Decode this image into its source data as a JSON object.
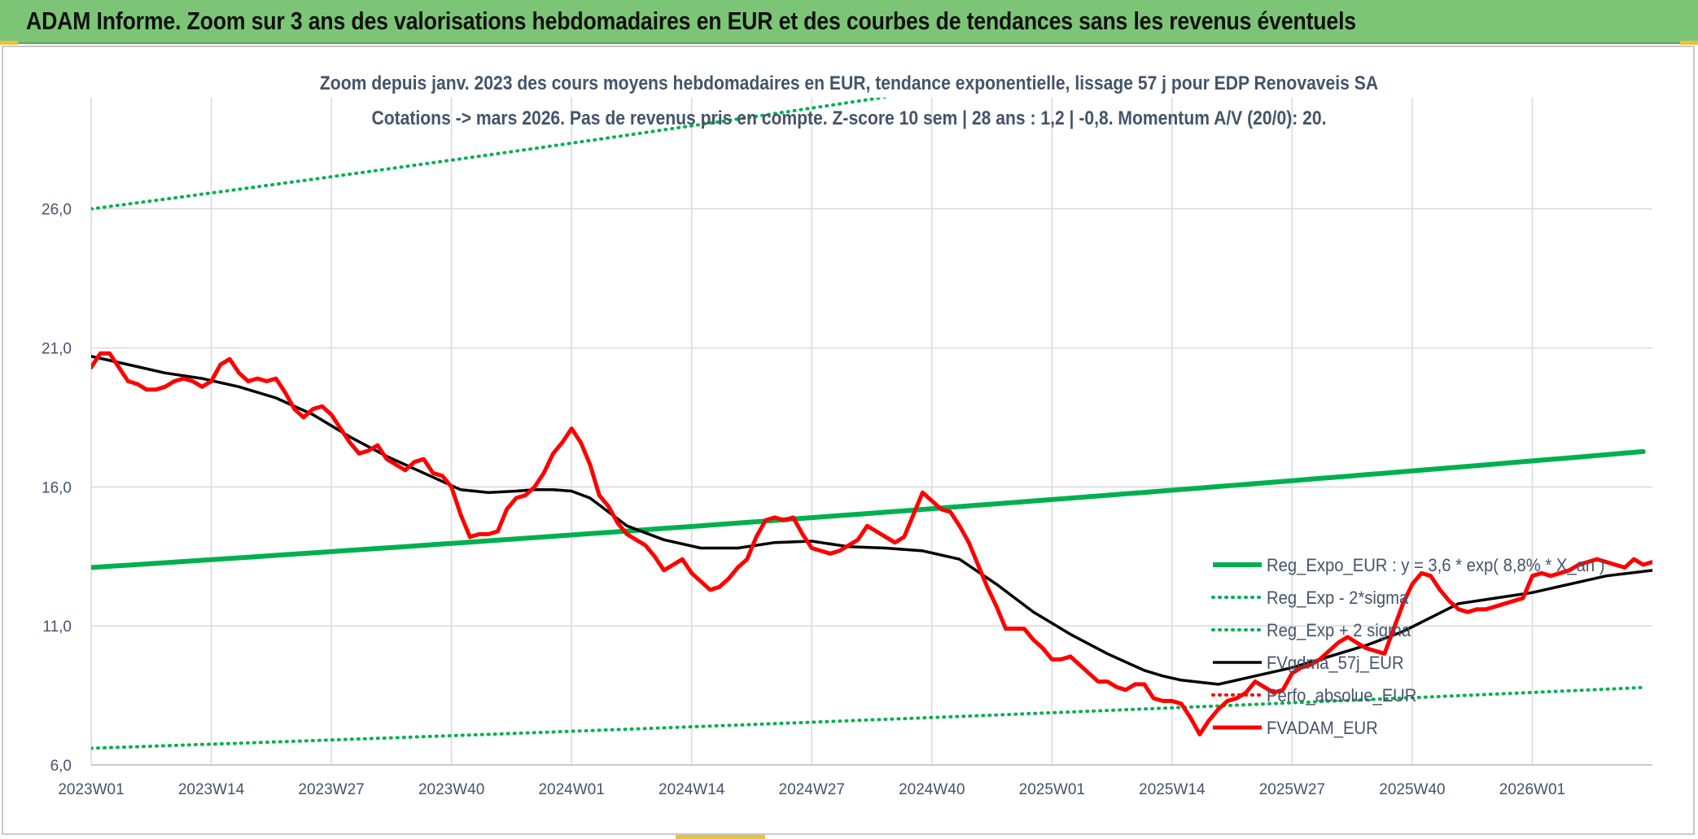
{
  "header": {
    "title": "ADAM Informe. Zoom sur 3 ans des valorisations hebdomadaires en EUR et des courbes de tendances sans les revenus éventuels"
  },
  "colors": {
    "header_bg": "#7cc576",
    "trend": "#00b050",
    "smooth": "#000000",
    "price": "#ff0000",
    "perf": "#ff0000",
    "grid": "#d9d9d9",
    "text": "#44546a"
  },
  "chart_data": {
    "type": "line",
    "title_line1": "Zoom depuis janv. 2023 des cours moyens hebdomadaires en EUR, tendance exponentielle, lissage 57 j pour EDP Renovaveis SA",
    "title_line2": "Cotations -> mars 2026. Pas de revenus pris en compte. Z-score 10 sem | 28 ans : 1,2 | -0,8. Momentum A/V (20/0): 20.",
    "ylim": [
      6.0,
      30.0
    ],
    "y_ticks": [
      "6,0",
      "11,0",
      "16,0",
      "21,0",
      "26,0"
    ],
    "y_tick_values": [
      6,
      11,
      16,
      21,
      26
    ],
    "x_tick_labels": [
      "2023W01",
      "2023W14",
      "2023W27",
      "2023W40",
      "2024W01",
      "2024W14",
      "2024W27",
      "2024W40",
      "2025W01",
      "2025W14",
      "2025W27",
      "2025W40",
      "2026W01"
    ],
    "x_tick_weeks": [
      0,
      13,
      26,
      39,
      52,
      65,
      78,
      91,
      104,
      117,
      130,
      143,
      156
    ],
    "x_max_week": 169,
    "grid": true,
    "legend_position": "right",
    "series": [
      {
        "name": "Reg_Expo_EUR : y = 3,6 * exp( 8,8% * X_an )",
        "style": "solid-thick",
        "color": "#00b050",
        "x": [
          0,
          169
        ],
        "values": [
          13.1,
          17.3
        ]
      },
      {
        "name": "Reg_Exp - 2*sigma",
        "style": "dotted",
        "color": "#00b050",
        "x": [
          0,
          169
        ],
        "values": [
          6.6,
          8.8
        ]
      },
      {
        "name": "Reg_Exp + 2 sigma",
        "style": "dotted",
        "color": "#00b050",
        "x": [
          0,
          169
        ],
        "values": [
          26.0,
          34.5
        ]
      },
      {
        "name": "FVgdma_57j_EUR",
        "style": "solid",
        "color": "#000000",
        "x": [
          0,
          4,
          8,
          12,
          16,
          20,
          24,
          28,
          32,
          36,
          40,
          43,
          46,
          48,
          50,
          52,
          54,
          58,
          62,
          66,
          70,
          74,
          78,
          82,
          86,
          90,
          94,
          98,
          102,
          106,
          110,
          114,
          116,
          118,
          122,
          126,
          130,
          134,
          138,
          142,
          145,
          148,
          152,
          156,
          160,
          164,
          169
        ],
        "values": [
          20.7,
          20.4,
          20.1,
          19.9,
          19.6,
          19.2,
          18.6,
          17.8,
          17.1,
          16.5,
          15.9,
          15.8,
          15.85,
          15.9,
          15.9,
          15.85,
          15.6,
          14.6,
          14.1,
          13.8,
          13.8,
          14.0,
          14.05,
          13.85,
          13.8,
          13.7,
          13.4,
          12.5,
          11.5,
          10.7,
          10.0,
          9.4,
          9.2,
          9.05,
          8.9,
          9.2,
          9.5,
          9.9,
          10.3,
          10.8,
          11.3,
          11.8,
          12.0,
          12.2,
          12.5,
          12.8,
          13.0
        ]
      },
      {
        "name": "Perfo_absolue_EUR",
        "style": "dotted",
        "color": "#ff0000",
        "x": [],
        "values": []
      },
      {
        "name": "FVADAM_EUR",
        "style": "solid-thick",
        "color": "#ff0000",
        "x": [
          0,
          1,
          2,
          3,
          4,
          5,
          6,
          7,
          8,
          9,
          10,
          11,
          12,
          13,
          14,
          15,
          16,
          17,
          18,
          19,
          20,
          21,
          22,
          23,
          24,
          25,
          26,
          27,
          28,
          29,
          30,
          31,
          32,
          33,
          34,
          35,
          36,
          37,
          38,
          39,
          40,
          41,
          42,
          43,
          44,
          45,
          46,
          47,
          48,
          49,
          50,
          51,
          52,
          53,
          54,
          55,
          56,
          57,
          58,
          59,
          60,
          61,
          62,
          63,
          64,
          65,
          66,
          67,
          68,
          69,
          70,
          71,
          72,
          73,
          74,
          75,
          76,
          77,
          78,
          79,
          80,
          81,
          82,
          83,
          84,
          85,
          86,
          87,
          88,
          89,
          90,
          91,
          92,
          93,
          94,
          95,
          96,
          97,
          98,
          99,
          100,
          101,
          102,
          103,
          104,
          105,
          106,
          107,
          108,
          109,
          110,
          111,
          112,
          113,
          114,
          115,
          116,
          117,
          118,
          119,
          120,
          121,
          122,
          123,
          124,
          125,
          126,
          127,
          128,
          129,
          130,
          131,
          132,
          133,
          134,
          135,
          136,
          137,
          138,
          139,
          140,
          141,
          142,
          143,
          144,
          145,
          146,
          147,
          148,
          149,
          150,
          151,
          152,
          153,
          154,
          155,
          156,
          157,
          158,
          159,
          160,
          161,
          162,
          163,
          164,
          165,
          166,
          167,
          168,
          169
        ],
        "values": [
          20.3,
          20.8,
          20.8,
          20.3,
          19.8,
          19.7,
          19.5,
          19.5,
          19.6,
          19.8,
          19.9,
          19.8,
          19.6,
          19.8,
          20.4,
          20.6,
          20.1,
          19.8,
          19.9,
          19.8,
          19.9,
          19.4,
          18.8,
          18.5,
          18.8,
          18.9,
          18.6,
          18.1,
          17.6,
          17.2,
          17.3,
          17.5,
          17.0,
          16.8,
          16.6,
          16.9,
          17.0,
          16.5,
          16.4,
          16.0,
          15.0,
          14.2,
          14.3,
          14.3,
          14.4,
          15.2,
          15.6,
          15.7,
          16.0,
          16.5,
          17.2,
          17.6,
          18.1,
          17.6,
          16.8,
          15.7,
          15.3,
          14.7,
          14.3,
          14.1,
          13.9,
          13.5,
          13.0,
          13.2,
          13.4,
          12.9,
          12.6,
          12.3,
          12.4,
          12.7,
          13.1,
          13.4,
          14.2,
          14.8,
          14.9,
          14.8,
          14.9,
          14.3,
          13.8,
          13.7,
          13.6,
          13.7,
          13.9,
          14.1,
          14.6,
          14.4,
          14.2,
          14.0,
          14.2,
          15.0,
          15.8,
          15.5,
          15.2,
          15.1,
          14.6,
          14.0,
          13.2,
          12.4,
          11.7,
          10.9,
          10.9,
          10.9,
          10.5,
          10.2,
          9.8,
          9.8,
          9.9,
          9.6,
          9.3,
          9.0,
          9.0,
          8.8,
          8.7,
          8.9,
          8.9,
          8.4,
          8.3,
          8.3,
          8.2,
          7.7,
          7.1,
          7.6,
          8.0,
          8.3,
          8.4,
          8.6,
          9.0,
          8.8,
          8.6,
          8.7,
          9.3,
          9.5,
          9.6,
          9.8,
          10.1,
          10.4,
          10.6,
          10.4,
          10.2,
          10.1,
          10.0,
          10.9,
          11.8,
          12.5,
          12.9,
          12.8,
          12.3,
          11.9,
          11.6,
          11.5,
          11.6,
          11.6,
          11.7,
          11.8,
          11.9,
          12.0,
          12.8,
          12.9,
          12.8,
          12.9,
          13.0,
          13.2,
          13.3,
          13.4,
          13.3,
          13.2,
          13.1,
          13.4,
          13.2,
          13.3
        ]
      }
    ]
  }
}
